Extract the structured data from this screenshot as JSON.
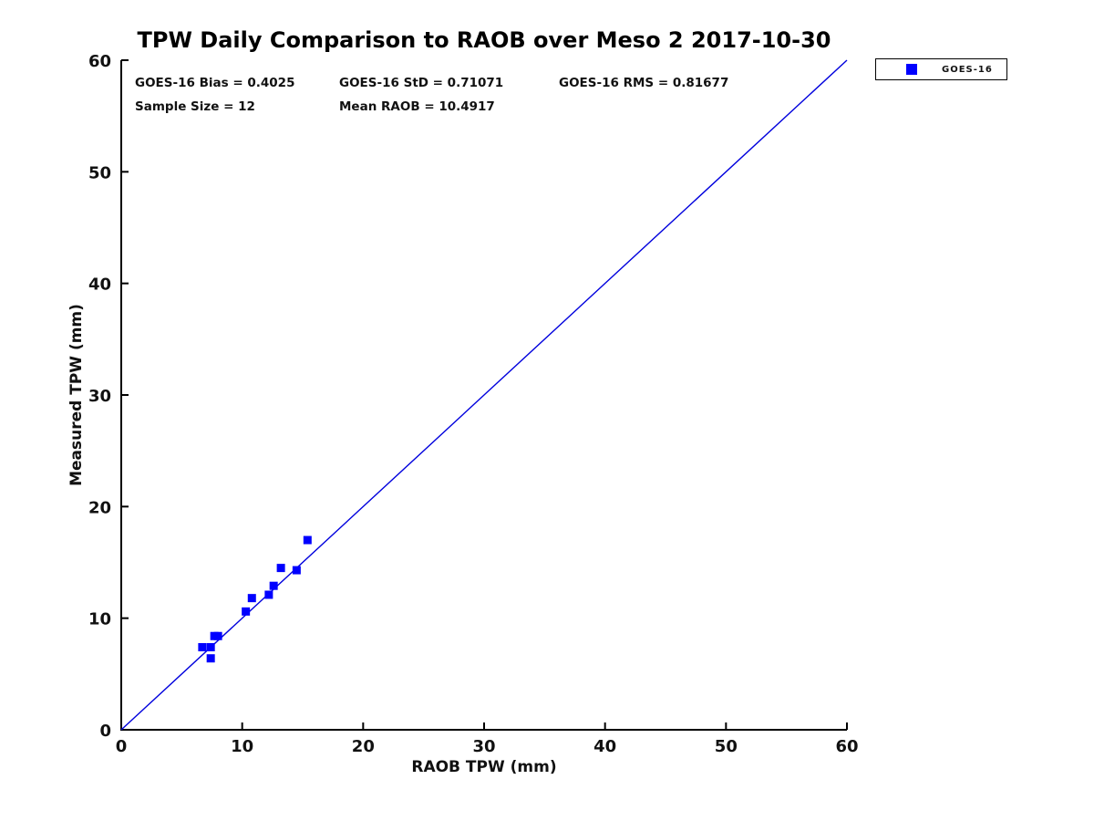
{
  "chart_data": {
    "type": "scatter",
    "title": "TPW Daily Comparison to RAOB over Meso 2 2017-10-30",
    "xlabel": "RAOB TPW (mm)",
    "ylabel": "Measured TPW (mm)",
    "xlim": [
      0,
      60
    ],
    "ylim": [
      0,
      60
    ],
    "xticks": [
      0,
      10,
      20,
      30,
      40,
      50,
      60
    ],
    "yticks": [
      0,
      10,
      20,
      30,
      40,
      50,
      60
    ],
    "grid": false,
    "legend_position": "top-right-outside",
    "stats": {
      "bias": "GOES-16 Bias = 0.4025",
      "std": "GOES-16 StD = 0.71071",
      "rms": "GOES-16 RMS = 0.81677",
      "sample_size": "Sample Size = 12",
      "mean_raob": "Mean RAOB = 10.4917"
    },
    "series": [
      {
        "name": "GOES-16",
        "marker": "square",
        "color": "#0000ff",
        "points": [
          [
            6.7,
            7.4
          ],
          [
            7.4,
            7.4
          ],
          [
            7.4,
            6.4
          ],
          [
            7.7,
            8.4
          ],
          [
            8.0,
            8.4
          ],
          [
            10.3,
            10.6
          ],
          [
            10.8,
            11.8
          ],
          [
            12.2,
            12.1
          ],
          [
            12.6,
            12.9
          ],
          [
            13.2,
            14.5
          ],
          [
            14.5,
            14.3
          ],
          [
            15.4,
            17.0
          ]
        ]
      }
    ],
    "reference_line": {
      "label": "identity-line",
      "x": [
        0,
        60
      ],
      "y": [
        0,
        60
      ],
      "color": "#0000dd"
    },
    "axis_color": "#000000",
    "marker_size_px": 9
  }
}
